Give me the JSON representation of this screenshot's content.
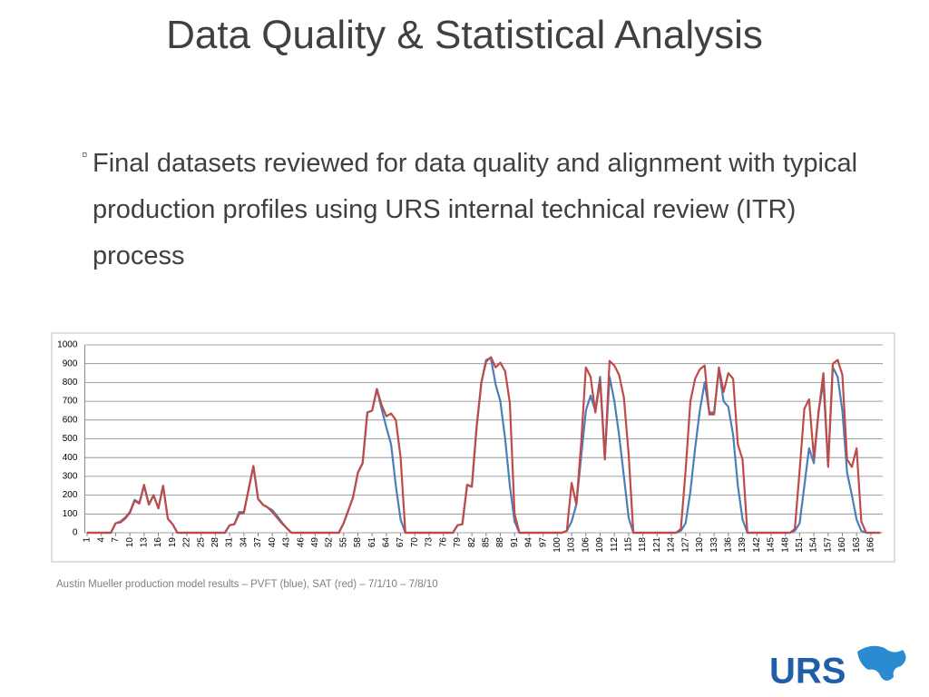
{
  "title": "Data Quality & Statistical Analysis",
  "bullet": "Final datasets reviewed for data quality and alignment with typical production profiles using URS internal technical review (ITR) process",
  "caption": "Austin Mueller production model results – PVFT (blue), SAT (red) – 7/1/10 – 7/8/10",
  "logo": "URS",
  "chart_data": {
    "type": "line",
    "categories": [
      1,
      null,
      null,
      4,
      null,
      null,
      7,
      null,
      null,
      10,
      null,
      null,
      13,
      null,
      null,
      16,
      null,
      null,
      19,
      null,
      null,
      22,
      null,
      null,
      25,
      null,
      null,
      28,
      null,
      null,
      31,
      null,
      null,
      34,
      null,
      null,
      37,
      null,
      null,
      40,
      null,
      null,
      43,
      null,
      null,
      46,
      null,
      null,
      49,
      null,
      null,
      52,
      null,
      null,
      55,
      null,
      null,
      58,
      null,
      null,
      61,
      null,
      null,
      64,
      null,
      null,
      67,
      null,
      null,
      70,
      null,
      null,
      73,
      null,
      null,
      76,
      null,
      null,
      79,
      null,
      null,
      82,
      null,
      null,
      85,
      null,
      null,
      88,
      null,
      null,
      91,
      null,
      null,
      94,
      null,
      null,
      97,
      null,
      null,
      100,
      null,
      null,
      103,
      null,
      null,
      106,
      null,
      null,
      109,
      null,
      null,
      112,
      null,
      null,
      115,
      null,
      null,
      118,
      null,
      null,
      121,
      null,
      null,
      124,
      null,
      null,
      127,
      null,
      null,
      130,
      null,
      null,
      133,
      null,
      null,
      136,
      null,
      null,
      139,
      null,
      null,
      142,
      null,
      null,
      145,
      null,
      null,
      148,
      null,
      null,
      151,
      null,
      null,
      154,
      null,
      null,
      157,
      null,
      null,
      160,
      null,
      null,
      163,
      null,
      null,
      166,
      null,
      null
    ],
    "series": [
      {
        "color": "#4a7ebb",
        "values": [
          0,
          0,
          0,
          0,
          0,
          0,
          50,
          60,
          80,
          110,
          175,
          160,
          250,
          150,
          200,
          130,
          250,
          75,
          45,
          0,
          0,
          0,
          0,
          0,
          0,
          0,
          0,
          0,
          0,
          0,
          40,
          45,
          110,
          110,
          230,
          355,
          180,
          150,
          135,
          120,
          90,
          55,
          25,
          0,
          0,
          0,
          0,
          0,
          0,
          0,
          0,
          0,
          0,
          0,
          50,
          120,
          190,
          320,
          370,
          640,
          650,
          765,
          660,
          560,
          470,
          250,
          70,
          0,
          0,
          0,
          0,
          0,
          0,
          0,
          0,
          0,
          0,
          0,
          40,
          45,
          255,
          245,
          560,
          800,
          920,
          930,
          790,
          700,
          500,
          250,
          60,
          0,
          0,
          0,
          0,
          0,
          0,
          0,
          0,
          0,
          0,
          10,
          60,
          150,
          400,
          650,
          730,
          650,
          830,
          400,
          830,
          700,
          520,
          300,
          80,
          0,
          0,
          0,
          0,
          0,
          0,
          0,
          0,
          0,
          0,
          10,
          50,
          220,
          450,
          650,
          800,
          640,
          640,
          870,
          700,
          670,
          520,
          250,
          70,
          0,
          0,
          0,
          0,
          0,
          0,
          0,
          0,
          0,
          0,
          10,
          50,
          250,
          450,
          370,
          650,
          800,
          360,
          880,
          830,
          650,
          320,
          200,
          70,
          10,
          0,
          0,
          0,
          0
        ]
      },
      {
        "color": "#be4b48",
        "values": [
          0,
          0,
          0,
          0,
          0,
          0,
          50,
          55,
          75,
          105,
          170,
          155,
          255,
          150,
          200,
          130,
          250,
          75,
          45,
          0,
          0,
          0,
          0,
          0,
          0,
          0,
          0,
          0,
          0,
          0,
          40,
          45,
          100,
          105,
          230,
          355,
          180,
          150,
          135,
          110,
          80,
          50,
          25,
          0,
          0,
          0,
          0,
          0,
          0,
          0,
          0,
          0,
          0,
          0,
          50,
          120,
          190,
          320,
          370,
          640,
          650,
          765,
          680,
          620,
          635,
          600,
          400,
          0,
          0,
          0,
          0,
          0,
          0,
          0,
          0,
          0,
          0,
          0,
          40,
          45,
          255,
          245,
          560,
          800,
          910,
          935,
          880,
          905,
          860,
          690,
          100,
          0,
          0,
          0,
          0,
          0,
          0,
          0,
          0,
          0,
          0,
          10,
          265,
          150,
          470,
          880,
          830,
          640,
          810,
          390,
          915,
          890,
          840,
          720,
          420,
          0,
          0,
          0,
          0,
          0,
          0,
          0,
          0,
          0,
          0,
          20,
          330,
          700,
          820,
          870,
          890,
          630,
          630,
          880,
          750,
          850,
          820,
          470,
          390,
          0,
          0,
          0,
          0,
          0,
          0,
          0,
          0,
          0,
          0,
          20,
          330,
          660,
          710,
          400,
          640,
          850,
          350,
          900,
          920,
          840,
          390,
          350,
          450,
          60,
          0,
          0,
          0,
          0
        ]
      }
    ],
    "ylim": [
      0,
      1000
    ],
    "yticks": [
      0,
      100,
      200,
      300,
      400,
      500,
      600,
      700,
      800,
      900,
      1000
    ],
    "grid": true
  }
}
